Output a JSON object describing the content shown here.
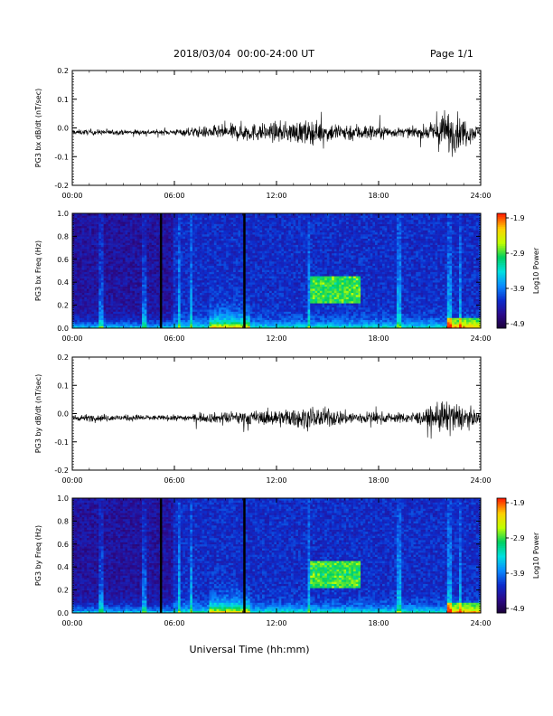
{
  "header": {
    "date_range": "2018/03/04  00:00-24:00 UT",
    "page": "Page 1/1"
  },
  "footer": {
    "xlabel": "Universal Time (hh:mm)"
  },
  "colorbar": {
    "label": "Log10 Power",
    "ticks": [
      "-1.9",
      "-2.9",
      "-3.9",
      "-4.9"
    ],
    "colors": [
      "#1a0033",
      "#2b0a8a",
      "#0d2ccc",
      "#0a8aff",
      "#00e0e0",
      "#00d060",
      "#c0ff00",
      "#ffd000",
      "#ff2000"
    ]
  },
  "chart_data": [
    {
      "type": "line",
      "ylabel": "PG3 bx dB/dt (nT/sec)",
      "ylim": [
        -0.2,
        0.2
      ],
      "yticks": [
        "0.2",
        "0.1",
        "0.0",
        "-0.1",
        "-0.2"
      ],
      "xlim": [
        "00:00",
        "24:00"
      ],
      "xticks": [
        "00:00",
        "06:00",
        "12:00",
        "18:00",
        "24:00"
      ],
      "series": [
        {
          "x_hours": [
            0,
            1,
            2,
            3,
            4,
            5,
            6,
            7,
            8,
            9,
            10,
            11,
            12,
            13,
            14,
            15,
            16,
            17,
            18,
            19,
            20,
            21,
            22,
            23,
            24
          ],
          "envelope": [
            0.01,
            0.012,
            0.012,
            0.01,
            0.012,
            0.01,
            0.012,
            0.02,
            0.025,
            0.03,
            0.04,
            0.035,
            0.04,
            0.045,
            0.05,
            0.04,
            0.04,
            0.035,
            0.03,
            0.02,
            0.02,
            0.03,
            0.1,
            0.06,
            0.02
          ]
        }
      ]
    },
    {
      "type": "heatmap",
      "ylabel": "PG3 bx Freq (Hz)",
      "ylim": [
        0.0,
        1.0
      ],
      "yticks": [
        "1.0",
        "0.8",
        "0.6",
        "0.4",
        "0.2",
        "0.0"
      ],
      "xlim": [
        "00:00",
        "24:00"
      ],
      "xticks": [
        "00:00",
        "06:00",
        "12:00",
        "18:00",
        "24:00"
      ],
      "data_gaps_hours": [
        5.2,
        10.1
      ]
    },
    {
      "type": "line",
      "ylabel": "PG3 by dB/dt (nT/sec)",
      "ylim": [
        -0.2,
        0.2
      ],
      "yticks": [
        "0.2",
        "0.1",
        "0.0",
        "-0.1",
        "-0.2"
      ],
      "xlim": [
        "00:00",
        "24:00"
      ],
      "xticks": [
        "00:00",
        "06:00",
        "12:00",
        "18:00",
        "24:00"
      ],
      "series": [
        {
          "x_hours": [
            0,
            1,
            2,
            3,
            4,
            5,
            6,
            7,
            8,
            9,
            10,
            11,
            12,
            13,
            14,
            15,
            16,
            17,
            18,
            19,
            20,
            21,
            22,
            23,
            24
          ],
          "envelope": [
            0.012,
            0.015,
            0.015,
            0.012,
            0.015,
            0.01,
            0.012,
            0.015,
            0.02,
            0.025,
            0.03,
            0.03,
            0.035,
            0.04,
            0.045,
            0.04,
            0.03,
            0.025,
            0.025,
            0.02,
            0.025,
            0.035,
            0.08,
            0.05,
            0.02
          ]
        }
      ]
    },
    {
      "type": "heatmap",
      "ylabel": "PG3 by Freq (Hz)",
      "ylim": [
        0.0,
        1.0
      ],
      "yticks": [
        "1.0",
        "0.8",
        "0.6",
        "0.4",
        "0.2",
        "0.0"
      ],
      "xlim": [
        "00:00",
        "24:00"
      ],
      "xticks": [
        "00:00",
        "06:00",
        "12:00",
        "18:00",
        "24:00"
      ],
      "data_gaps_hours": [
        5.2,
        10.1
      ]
    }
  ]
}
